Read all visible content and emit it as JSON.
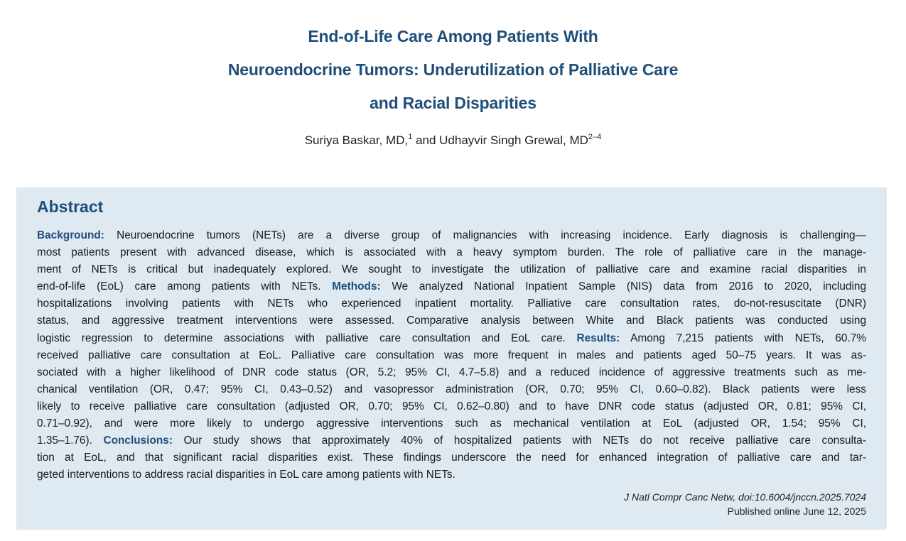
{
  "title": {
    "line1": "End-of-Life Care Among Patients With",
    "line2": "Neuroendocrine Tumors: Underutilization of Palliative Care",
    "line3": "and Racial Disparities"
  },
  "authors": {
    "author1": "Suriya Baskar, MD,",
    "author1_sup": "1",
    "and": " and ",
    "author2": "Udhayvir Singh Grewal, MD",
    "author2_sup": "2–4"
  },
  "abstract": {
    "heading": "Abstract",
    "background_label": "Background:",
    "methods_label": "Methods:",
    "results_label": "Results:",
    "conclusions_label": "Conclusions:",
    "lines": [
      " Neuroendocrine tumors (NETs) are a diverse group of malignancies with increasing incidence. Early diagnosis is challenging—",
      "most patients present with advanced disease, which is associated with a heavy symptom burden. The role of palliative care in the manage-",
      "ment of NETs is critical but inadequately explored. We sought to investigate the utilization of palliative care and examine racial disparities in",
      "end-of-life (EoL) care among patients with NETs. ",
      " We analyzed National Inpatient Sample (NIS) data from 2016 to 2020, including",
      "hospitalizations involving patients with NETs who experienced inpatient mortality. Palliative care consultation rates, do-not-resuscitate (DNR)",
      "status, and aggressive treatment interventions were assessed. Comparative analysis between White and Black patients was conducted using",
      "logistic regression to determine associations with palliative care consultation and EoL care. ",
      " Among 7,215 patients with NETs, 60.7%",
      "received palliative care consultation at EoL. Palliative care consultation was more frequent in males and patients aged 50–75 years. It was as-",
      "sociated with a higher likelihood of DNR code status (OR, 5.2; 95% CI, 4.7–5.8) and a reduced incidence of aggressive treatments such as me-",
      "chanical ventilation (OR, 0.47; 95% CI, 0.43–0.52) and vasopressor administration (OR, 0.70; 95% CI, 0.60–0.82). Black patients were less",
      "likely to receive palliative care consultation (adjusted OR, 0.70; 95% CI, 0.62–0.80) and to have DNR code status (adjusted OR, 0.81; 95% CI,",
      "0.71–0.92), and were more likely to undergo aggressive interventions such as mechanical ventilation at EoL (adjusted OR, 1.54; 95% CI,",
      "1.35–1.76). ",
      " Our study shows that approximately 40% of hospitalized patients with NETs do not receive palliative care consulta-",
      "tion at EoL, and that significant racial disparities exist. These findings underscore the need for enhanced integration of palliative care and tar-",
      "geted interventions to address racial disparities in EoL care among patients with NETs."
    ]
  },
  "citation": {
    "journal": "J Natl Compr Canc Netw, doi:10.6004/jnccn.2025.7024",
    "published": "Published online June 12, 2025"
  }
}
